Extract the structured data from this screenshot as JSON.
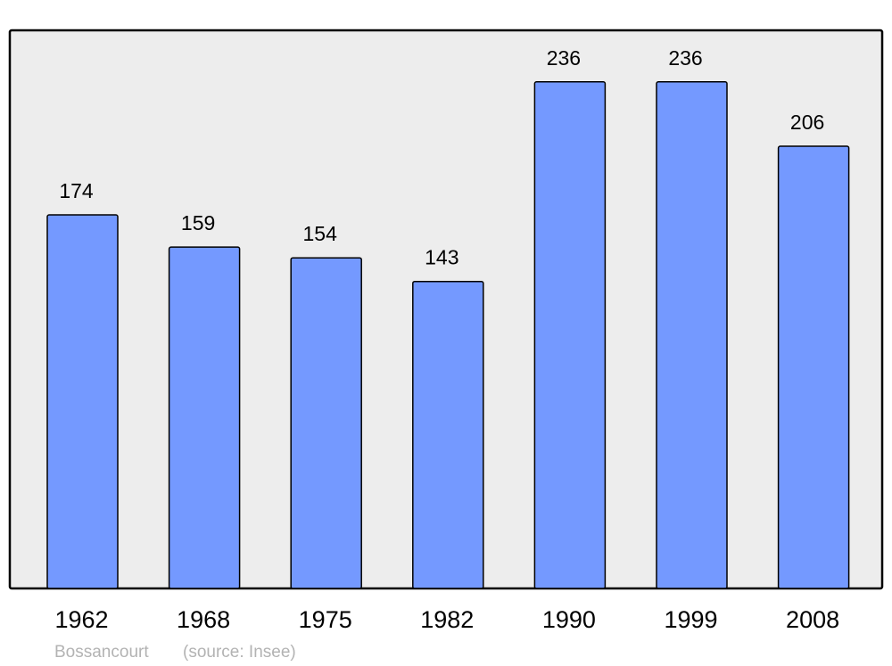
{
  "chart_data": {
    "type": "bar",
    "categories": [
      "1962",
      "1968",
      "1975",
      "1982",
      "1990",
      "1999",
      "2008"
    ],
    "values": [
      174,
      159,
      154,
      143,
      236,
      236,
      206
    ],
    "title": "",
    "xlabel": "",
    "ylabel": "",
    "ylim": [
      0,
      260
    ],
    "grid": false,
    "data_labels": true,
    "colors": {
      "bar": "#7499ff",
      "plot_background": "#ededed",
      "border": "#000000"
    }
  },
  "footer": {
    "place": "Bossancourt",
    "source": "(source: Insee)",
    "color": "#b3b3b3"
  }
}
